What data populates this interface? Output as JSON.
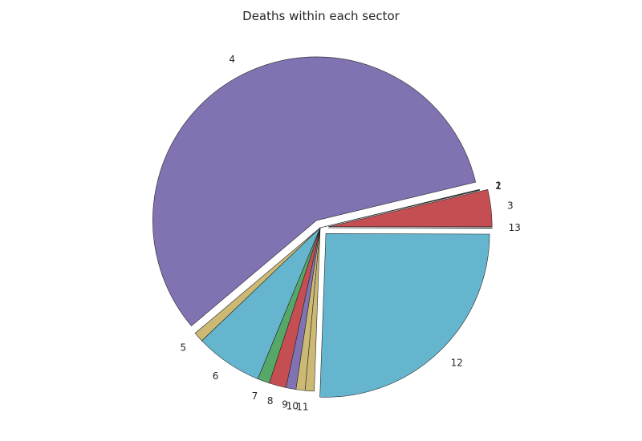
{
  "chart_data": {
    "type": "pie",
    "title": "Deaths within each sector",
    "categories": [
      "3",
      "1",
      "2",
      "4",
      "5",
      "6",
      "7",
      "8",
      "9",
      "10",
      "11",
      "12",
      "13"
    ],
    "values": [
      3.7,
      0.05,
      0.05,
      58.0,
      1.0,
      6.7,
      1.2,
      1.7,
      1.0,
      0.9,
      0.9,
      25.8,
      0.05
    ],
    "explode": [
      true,
      false,
      false,
      true,
      false,
      false,
      false,
      false,
      false,
      false,
      false,
      true,
      true
    ],
    "colors": [
      "#c44e52",
      "#55a868",
      "#4c72b0",
      "#8172b2",
      "#ccb974",
      "#64b5cd",
      "#55a868",
      "#c44e52",
      "#8172b2",
      "#ccb974",
      "#ccb974",
      "#64b5cd",
      "#4c72b0"
    ],
    "start_angle_deg": 0,
    "direction": "counterclockwise"
  }
}
